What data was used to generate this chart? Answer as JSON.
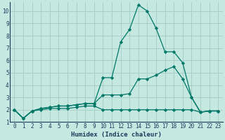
{
  "xlabel": "Humidex (Indice chaleur)",
  "bg_color": "#c5e8e0",
  "grid_color": "#a8cfc8",
  "line_color": "#007868",
  "xticks": [
    0,
    1,
    2,
    3,
    4,
    5,
    6,
    7,
    8,
    9,
    10,
    11,
    12,
    13,
    14,
    15,
    16,
    17,
    18,
    19,
    20,
    21,
    22,
    23
  ],
  "yticks": [
    1,
    2,
    3,
    4,
    5,
    6,
    7,
    8,
    9,
    10
  ],
  "xlim": [
    -0.5,
    23.5
  ],
  "ylim": [
    1,
    10.7
  ],
  "line1_x": [
    0,
    1,
    2,
    3,
    4,
    5,
    6,
    7,
    8,
    9,
    10,
    11,
    12,
    13,
    14,
    15,
    16,
    17,
    18,
    19,
    20,
    21,
    22,
    23
  ],
  "line1_y": [
    2.0,
    1.3,
    1.9,
    2.1,
    2.2,
    2.3,
    2.3,
    2.4,
    2.5,
    2.5,
    4.6,
    4.6,
    7.5,
    8.5,
    10.5,
    10.0,
    8.6,
    6.7,
    6.7,
    5.8,
    3.0,
    1.8,
    1.9,
    1.9
  ],
  "line2_x": [
    0,
    1,
    2,
    3,
    4,
    5,
    6,
    7,
    8,
    9,
    10,
    11,
    12,
    13,
    14,
    15,
    16,
    17,
    18,
    19,
    20,
    21,
    22,
    23
  ],
  "line2_y": [
    2.0,
    1.3,
    1.9,
    2.1,
    2.2,
    2.3,
    2.3,
    2.4,
    2.5,
    2.5,
    3.2,
    3.2,
    3.2,
    3.3,
    4.5,
    4.5,
    4.8,
    5.2,
    5.5,
    4.5,
    3.0,
    1.8,
    1.9,
    1.9
  ],
  "line3_x": [
    0,
    1,
    2,
    3,
    4,
    5,
    6,
    7,
    8,
    9,
    10,
    11,
    12,
    13,
    14,
    15,
    16,
    17,
    18,
    19,
    20,
    21,
    22,
    23
  ],
  "line3_y": [
    2.0,
    1.3,
    1.9,
    2.0,
    2.1,
    2.1,
    2.1,
    2.2,
    2.3,
    2.3,
    2.0,
    2.0,
    2.0,
    2.0,
    2.0,
    2.0,
    2.0,
    2.0,
    2.0,
    2.0,
    2.0,
    1.8,
    1.9,
    1.9
  ]
}
